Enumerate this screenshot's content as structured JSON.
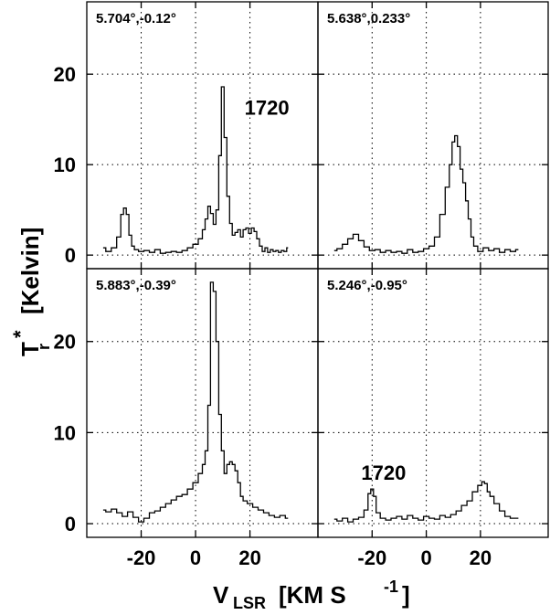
{
  "chart_data": {
    "type": "line",
    "layout": "2x2 panels with shared axes",
    "xlabel": {
      "main": "V",
      "sub": "LSR",
      "units": "[KM S",
      "sup": "-1",
      "close": "]"
    },
    "ylabel": {
      "main": "T",
      "sub": "r",
      "sup": "*",
      "units": "[Kelvin]"
    },
    "xlim": [
      -40,
      45
    ],
    "x_ticks": [
      -20,
      0,
      20
    ],
    "x_tick_labels": [
      "-20",
      "0",
      "20"
    ],
    "grid": true,
    "panels": [
      {
        "label": "5.704°,-0.12°",
        "annotation": {
          "text": "1720",
          "x": 18,
          "y": 15.5
        },
        "ylim": [
          -1.5,
          28
        ],
        "y_ticks": [
          0,
          10,
          20
        ],
        "y_tick_labels": [
          "0",
          "10",
          "20"
        ],
        "x": [
          -34,
          -32,
          -30,
          -28,
          -27,
          -26,
          -25,
          -24,
          -23,
          -22,
          -20,
          -18,
          -16,
          -14,
          -12,
          -10,
          -8,
          -6,
          -4,
          -2,
          0,
          2,
          3,
          4,
          5,
          6,
          7,
          8,
          9,
          10,
          11,
          12,
          13,
          14,
          15,
          16,
          17,
          18,
          19,
          20,
          21,
          22,
          23,
          24,
          25,
          26,
          27,
          28,
          29,
          30,
          31,
          32,
          33,
          34
        ],
        "y": [
          0.8,
          0.4,
          0.8,
          2.0,
          4.5,
          5.2,
          4.5,
          2.2,
          1.0,
          0.6,
          0.4,
          0.5,
          0.3,
          0.6,
          0.2,
          0.3,
          0.4,
          0.3,
          0.5,
          0.8,
          1.2,
          1.8,
          2.8,
          4.0,
          5.4,
          4.6,
          3.4,
          5.0,
          11.0,
          18.6,
          13.0,
          6.5,
          3.5,
          2.2,
          2.5,
          2.8,
          2.0,
          2.8,
          3.0,
          2.4,
          3.0,
          2.6,
          1.8,
          1.0,
          0.4,
          0.8,
          0.3,
          0.6,
          0.4,
          0.5,
          0.3,
          0.5,
          0.4,
          0.8
        ]
      },
      {
        "label": "5.638°,0.233°",
        "annotation": null,
        "ylim": [
          -1.5,
          28
        ],
        "y_ticks": [
          0,
          10,
          20
        ],
        "y_tick_labels": [
          "",
          "",
          ""
        ],
        "x": [
          -34,
          -32,
          -30,
          -28,
          -26,
          -24,
          -22,
          -20,
          -18,
          -16,
          -14,
          -12,
          -10,
          -8,
          -6,
          -4,
          -2,
          0,
          2,
          4,
          6,
          8,
          9,
          10,
          11,
          12,
          13,
          14,
          15,
          16,
          17,
          18,
          20,
          22,
          24,
          26,
          28,
          30,
          32,
          34
        ],
        "y": [
          0.5,
          0.7,
          1.2,
          1.8,
          2.3,
          1.6,
          0.9,
          0.5,
          0.6,
          0.3,
          0.5,
          0.3,
          0.4,
          0.2,
          0.6,
          0.3,
          0.4,
          0.7,
          1.0,
          2.0,
          4.5,
          7.5,
          10.0,
          12.5,
          13.2,
          12.0,
          9.5,
          8.0,
          6.0,
          4.0,
          2.0,
          1.0,
          0.4,
          0.8,
          0.5,
          0.7,
          0.3,
          0.6,
          0.4,
          0.6
        ]
      },
      {
        "label": "5.883°,-0.39°",
        "annotation": null,
        "ylim": [
          -1.5,
          28
        ],
        "y_ticks": [
          0,
          10,
          20
        ],
        "y_tick_labels": [
          "0",
          "10",
          "20"
        ],
        "x": [
          -34,
          -32,
          -30,
          -28,
          -26,
          -24,
          -22,
          -20,
          -18,
          -16,
          -14,
          -12,
          -10,
          -8,
          -6,
          -4,
          -2,
          0,
          2,
          3,
          4,
          5,
          6,
          7,
          8,
          9,
          10,
          11,
          12,
          13,
          14,
          15,
          16,
          17,
          18,
          20,
          22,
          24,
          26,
          28,
          30,
          32,
          34
        ],
        "y": [
          1.5,
          1.3,
          1.6,
          1.2,
          0.8,
          1.3,
          0.7,
          0.2,
          0.6,
          1.2,
          1.4,
          1.8,
          2.2,
          2.6,
          3.0,
          3.2,
          3.8,
          4.5,
          5.5,
          6.5,
          8.0,
          13.0,
          26.5,
          25.5,
          20.0,
          12.0,
          8.0,
          5.5,
          6.5,
          6.8,
          6.5,
          5.8,
          4.5,
          3.0,
          2.5,
          2.2,
          1.8,
          1.5,
          1.2,
          0.9,
          0.7,
          0.9,
          0.6
        ]
      },
      {
        "label": "5.246°,-0.95°",
        "annotation": {
          "text": "1720",
          "x": -24,
          "y": 4.8
        },
        "ylim": [
          -1.5,
          28
        ],
        "y_ticks": [
          0,
          10,
          20
        ],
        "y_tick_labels": [
          "",
          "",
          ""
        ],
        "x": [
          -34,
          -32,
          -30,
          -28,
          -26,
          -24,
          -22,
          -21,
          -20,
          -19,
          -18,
          -16,
          -14,
          -12,
          -10,
          -8,
          -6,
          -4,
          -2,
          0,
          2,
          4,
          6,
          8,
          10,
          12,
          14,
          16,
          18,
          20,
          21,
          22,
          23,
          24,
          26,
          28,
          30,
          32,
          34
        ],
        "y": [
          0.5,
          0.3,
          0.6,
          0.2,
          0.5,
          0.7,
          1.5,
          3.3,
          3.8,
          3.0,
          1.2,
          0.6,
          0.4,
          0.6,
          0.8,
          0.5,
          0.9,
          0.6,
          0.4,
          0.8,
          0.6,
          0.5,
          0.9,
          0.7,
          1.0,
          1.4,
          2.0,
          2.5,
          3.5,
          4.2,
          4.6,
          4.4,
          3.5,
          3.0,
          2.2,
          1.4,
          0.8,
          0.6,
          0.6
        ]
      }
    ]
  }
}
